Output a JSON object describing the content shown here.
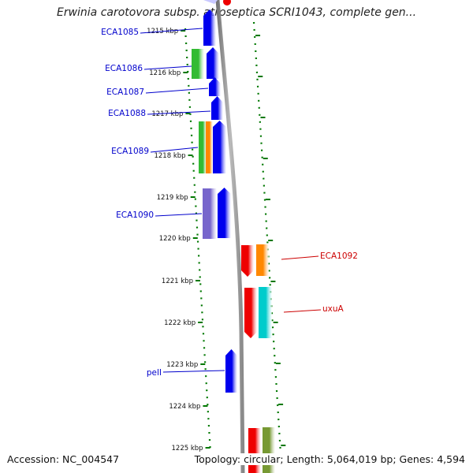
{
  "title": "Erwinia carotovora subsp. atroseptica SCRI1043, complete gen...",
  "accession_text": "Accession: NC_004547",
  "topology_text": "Topology: circular; Length: 5,064,019 bp; Genes: 4,594",
  "ruler_labels": [
    "1215 kbp",
    "1216 kbp",
    "1217 kbp",
    "1218 kbp",
    "1219 kbp",
    "1220 kbp",
    "1221 kbp",
    "1222 kbp",
    "1223 kbp",
    "1224 kbp",
    "1225 kbp"
  ],
  "genes_left": [
    {
      "name": "ECA1085",
      "color": "#0000cc"
    },
    {
      "name": "ECA1086",
      "color": "#0000cc"
    },
    {
      "name": "ECA1087",
      "color": "#0000cc"
    },
    {
      "name": "ECA1088",
      "color": "#0000cc"
    },
    {
      "name": "ECA1089",
      "color": "#0000cc"
    },
    {
      "name": "ECA1090",
      "color": "#0000cc"
    },
    {
      "name": "pelI",
      "color": "#0000cc"
    }
  ],
  "genes_right": [
    {
      "name": "ECA1092",
      "color": "#cc0000"
    },
    {
      "name": "uxuA",
      "color": "#cc0000"
    }
  ],
  "colors": {
    "blue": "#0000ee",
    "green": "#33bb33",
    "orange": "#ff8800",
    "red": "#ee0000",
    "cyan": "#00cccc",
    "purple": "#7766cc",
    "olive": "#779933",
    "backbone": "#999999",
    "dots": "#007700"
  }
}
